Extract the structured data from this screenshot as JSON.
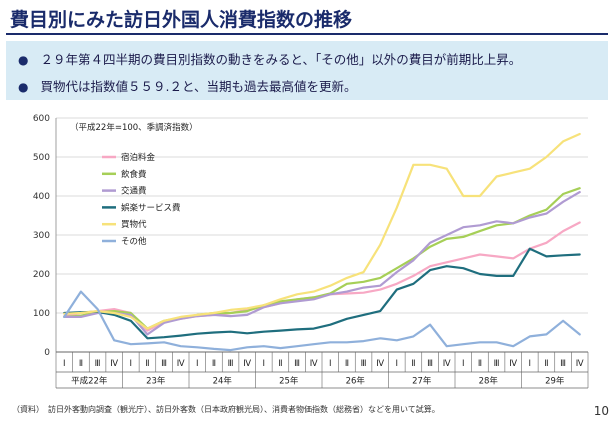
{
  "header": {
    "title": "費目別にみた訪日外国人消費指数の推移"
  },
  "bullets": [
    "２９年第４四半期の費目別指数の動きをみると、「その他」以外の費目が前期比上昇。",
    "買物代は指数値５５９.２と、当期も過去最高値を更新。"
  ],
  "footnote": "（資料）　訪日外客動向調査（観光庁）、訪日外客数（日本政府観光局）、消費者物価指数（総務省）などを用いて試算。",
  "page_number": "10",
  "chart_data": {
    "type": "line",
    "note": "（平成22年=100、季調済指数）",
    "ylim": [
      0,
      600
    ],
    "yticks": [
      0,
      100,
      200,
      300,
      400,
      500,
      600
    ],
    "quarter_labels": [
      "Ⅰ",
      "Ⅱ",
      "Ⅲ",
      "Ⅳ",
      "Ⅰ",
      "Ⅱ",
      "Ⅲ",
      "Ⅳ",
      "Ⅰ",
      "Ⅱ",
      "Ⅲ",
      "Ⅳ",
      "Ⅰ",
      "Ⅱ",
      "Ⅲ",
      "Ⅳ",
      "Ⅰ",
      "Ⅱ",
      "Ⅲ",
      "Ⅳ",
      "Ⅰ",
      "Ⅱ",
      "Ⅲ",
      "Ⅳ",
      "Ⅰ",
      "Ⅱ",
      "Ⅲ",
      "Ⅳ",
      "Ⅰ",
      "Ⅱ",
      "Ⅲ",
      "Ⅳ"
    ],
    "year_labels": [
      "平成22年",
      "23年",
      "24年",
      "25年",
      "26年",
      "27年",
      "28年",
      "29年"
    ],
    "grid": true,
    "legend_position": "top-left",
    "series": [
      {
        "name": "宿泊料金",
        "color": "#f7a8c4",
        "values": [
          92,
          100,
          105,
          110,
          100,
          55,
          78,
          85,
          92,
          95,
          100,
          108,
          115,
          125,
          135,
          140,
          148,
          150,
          152,
          160,
          175,
          195,
          220,
          230,
          240,
          250,
          245,
          240,
          265,
          280,
          310,
          332
        ]
      },
      {
        "name": "飲食費",
        "color": "#a6cf57",
        "values": [
          90,
          93,
          102,
          105,
          100,
          60,
          80,
          88,
          95,
          100,
          100,
          105,
          120,
          130,
          135,
          140,
          150,
          175,
          180,
          190,
          215,
          240,
          270,
          290,
          295,
          310,
          325,
          330,
          350,
          365,
          405,
          420
        ]
      },
      {
        "name": "交通費",
        "color": "#b09bd2",
        "values": [
          90,
          90,
          100,
          100,
          95,
          45,
          75,
          85,
          92,
          95,
          92,
          95,
          115,
          125,
          130,
          135,
          148,
          155,
          165,
          170,
          205,
          235,
          280,
          300,
          320,
          325,
          335,
          330,
          345,
          355,
          385,
          410
        ]
      },
      {
        "name": "娯楽サービス費",
        "color": "#1f6e7e",
        "values": [
          100,
          102,
          103,
          95,
          80,
          35,
          38,
          42,
          47,
          50,
          52,
          48,
          52,
          55,
          58,
          60,
          70,
          85,
          95,
          105,
          160,
          175,
          210,
          220,
          215,
          200,
          195,
          195,
          265,
          245,
          248,
          250
        ]
      },
      {
        "name": "買物代",
        "color": "#f7e27a",
        "values": [
          98,
          100,
          105,
          100,
          90,
          60,
          80,
          90,
          95,
          100,
          108,
          112,
          120,
          135,
          148,
          155,
          170,
          190,
          205,
          275,
          370,
          480,
          480,
          470,
          400,
          400,
          450,
          460,
          470,
          500,
          540,
          559
        ]
      },
      {
        "name": "その他",
        "color": "#8fb0db",
        "values": [
          90,
          155,
          110,
          30,
          20,
          22,
          25,
          15,
          12,
          8,
          5,
          12,
          15,
          10,
          15,
          20,
          25,
          25,
          28,
          35,
          30,
          40,
          70,
          15,
          20,
          25,
          25,
          15,
          40,
          45,
          80,
          45
        ]
      }
    ]
  }
}
